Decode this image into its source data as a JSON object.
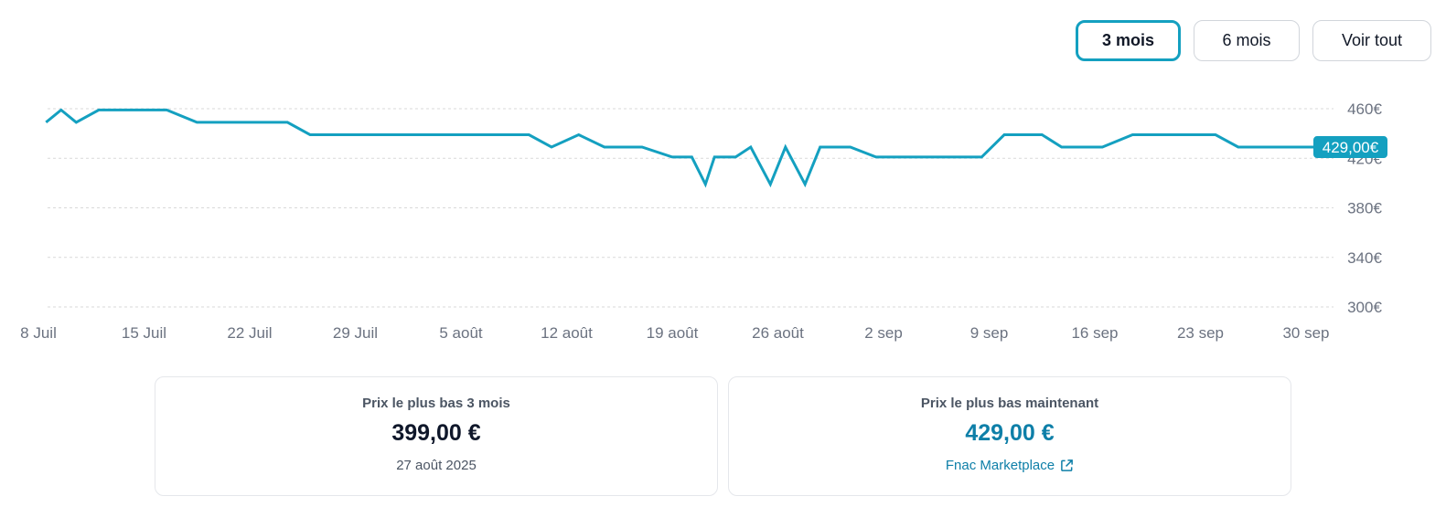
{
  "range_selector": {
    "buttons": [
      {
        "label": "3 mois",
        "active": true
      },
      {
        "label": "6 mois",
        "active": false
      },
      {
        "label": "Voir tout",
        "active": false
      }
    ]
  },
  "colors": {
    "line": "#14a0c0",
    "badge": "#14a0c0",
    "accent_price": "#0e7fa8",
    "grid": "#d9d9d9",
    "axis_text": "#6b7280"
  },
  "chart_data": {
    "type": "line",
    "title": "",
    "xlabel": "",
    "ylabel": "",
    "ylim": [
      300,
      460
    ],
    "y_ticks": [
      "460€",
      "420€",
      "380€",
      "340€",
      "300€"
    ],
    "y_tick_values": [
      460,
      420,
      380,
      340,
      300
    ],
    "x_ticks": [
      "8 Juil",
      "15 Juil",
      "22 Juil",
      "29 Juil",
      "5 août",
      "12 août",
      "19 août",
      "26 août",
      "2 sep",
      "9 sep",
      "16 sep",
      "23 sep",
      "30 sep"
    ],
    "x_tick_days": [
      0,
      7,
      14,
      21,
      28,
      35,
      42,
      49,
      56,
      63,
      70,
      77,
      84
    ],
    "grid": true,
    "current_label": "429,00€",
    "current_value": 429,
    "series": [
      {
        "x": [
          0.5,
          1.5,
          2.5,
          4,
          8.5,
          10.5,
          16.5,
          18,
          32.5,
          34,
          35.8,
          37.5,
          40,
          42,
          43.3,
          44.2,
          44.8,
          46.2,
          47.2,
          48.5,
          49.5,
          50.8,
          51.8,
          53.8,
          55.5,
          62.5,
          64,
          66.5,
          67.8,
          70.5,
          72.5,
          78,
          79.5,
          85
        ],
        "y": [
          449,
          459,
          449,
          459,
          459,
          449,
          449,
          439,
          439,
          429,
          439,
          429,
          429,
          421,
          421,
          399,
          421,
          421,
          429,
          399,
          429,
          399,
          429,
          429,
          421,
          421,
          439,
          439,
          429,
          429,
          439,
          439,
          429,
          429
        ]
      }
    ]
  },
  "cards": [
    {
      "title": "Prix le plus bas 3 mois",
      "price": "399,00 €",
      "sub": "27 août 2025"
    },
    {
      "title": "Prix le plus bas maintenant",
      "price": "429,00 €",
      "link": "Fnac Marketplace"
    }
  ]
}
